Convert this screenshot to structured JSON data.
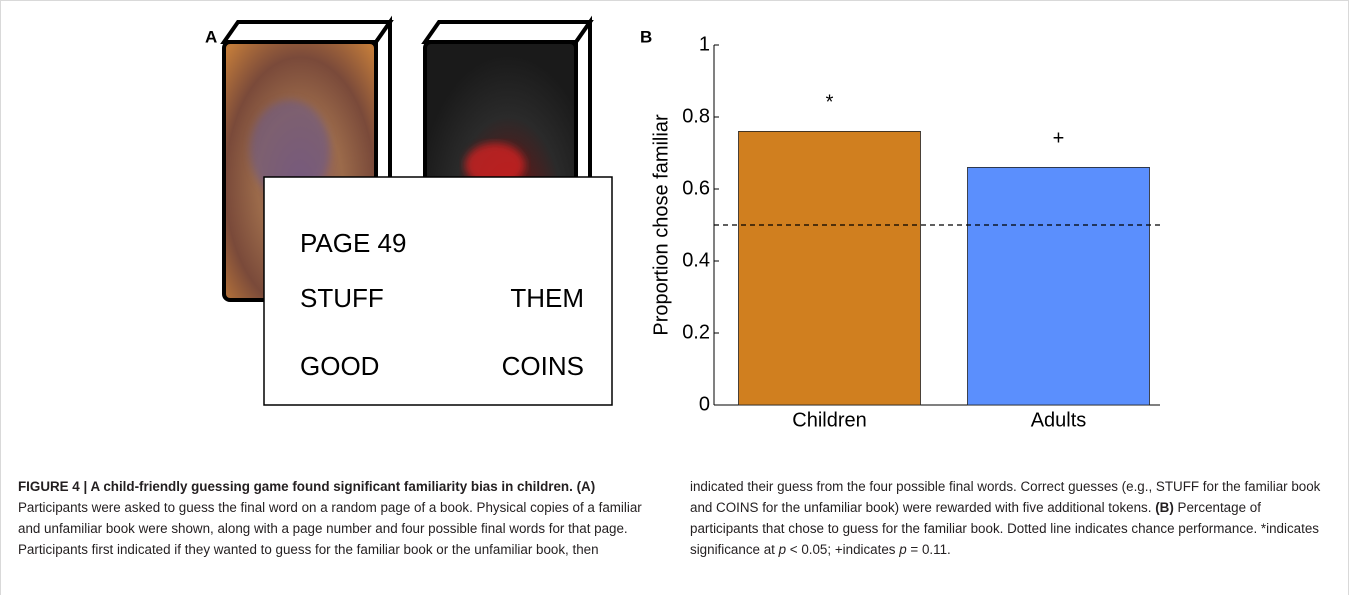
{
  "panel_a": {
    "label": "A",
    "card": {
      "page": "PAGE 49",
      "words": [
        "STUFF",
        "THEM",
        "GOOD",
        "COINS"
      ]
    }
  },
  "chart_data": {
    "type": "bar",
    "panel_label": "B",
    "ylabel": "Proportion chose familiar",
    "categories": [
      "Children",
      "Adults"
    ],
    "values": [
      0.76,
      0.66
    ],
    "colors": [
      "#d07f1f",
      "#5b8ffd"
    ],
    "annotations": [
      "*",
      "+"
    ],
    "ylim": [
      0,
      1
    ],
    "yticks": [
      0,
      0.2,
      0.4,
      0.6,
      0.8,
      1
    ],
    "reference_line": 0.5
  },
  "caption": {
    "parts": [
      {
        "text": "FIGURE 4 | A child-friendly guessing game found significant familiarity bias in children.",
        "style": "bold"
      },
      {
        "text": "(A)",
        "style": "bold"
      },
      {
        "text": "Participants were asked to guess the final word on a random page of a book. Physical copies of a familiar and unfamiliar book were shown, along with a page number and four possible final words for that page. Participants first indicated if they wanted to guess for the familiar book or the unfamiliar book, then indicated their guess from the four possible final words. Correct guesses (e.g., STUFF for the familiar book and COINS for the unfamiliar book) were rewarded with five additional tokens.",
        "style": "plain"
      },
      {
        "text": "(B)",
        "style": "bold"
      },
      {
        "text": "Percentage of participants that chose to guess for the familiar book. Dotted line indicates chance performance. *indicates significance at",
        "style": "plain"
      },
      {
        "text": "p",
        "style": "italic"
      },
      {
        "text": "< 0.05; +indicates",
        "style": "plain"
      },
      {
        "text": "p",
        "style": "italic"
      },
      {
        "text": "= 0.11.",
        "style": "plain"
      }
    ]
  }
}
